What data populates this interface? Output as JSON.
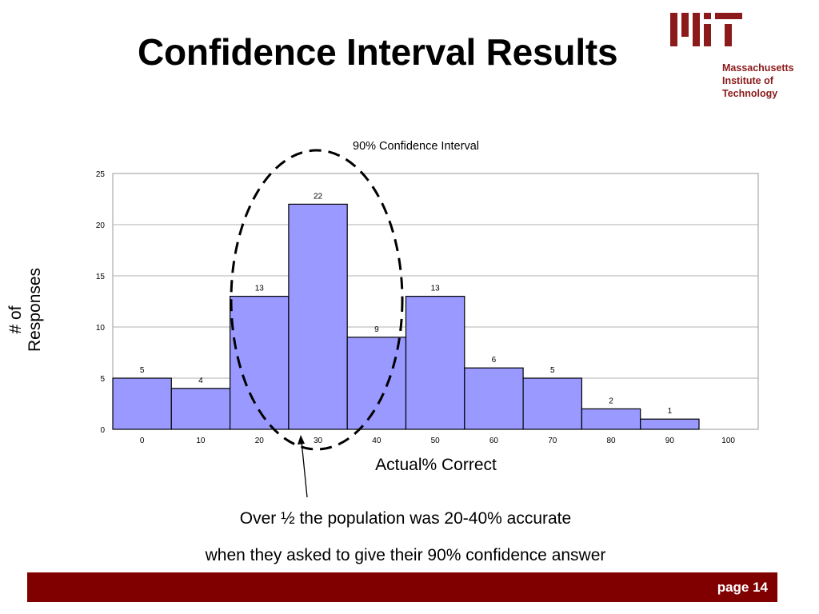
{
  "slide": {
    "title": "Confidence Interval Results",
    "caption_line1": "Over ½ the population was 20-40% accurate",
    "caption_line2": "when they asked to give their 90% confidence answer",
    "page_label": "page 14"
  },
  "logo": {
    "line1": "Massachusetts",
    "line2": "Institute of",
    "line3": "Technology",
    "mark_text": "MIT",
    "color": "#8b1a1a"
  },
  "footer": {
    "color": "#800000"
  },
  "chart_data": {
    "type": "bar",
    "title": "90% Confidence Interval",
    "xlabel": "Actual% Correct",
    "ylabel": "# of Responses",
    "categories": [
      "0",
      "10",
      "20",
      "30",
      "40",
      "50",
      "60",
      "70",
      "80",
      "90",
      "100"
    ],
    "values": [
      5,
      4,
      13,
      22,
      9,
      13,
      6,
      5,
      2,
      1,
      null
    ],
    "data_labels": [
      "5",
      "4",
      "13",
      "22",
      "9",
      "13",
      "6",
      "5",
      "2",
      "1",
      ""
    ],
    "ylim": [
      0,
      25
    ],
    "yticks": [
      "0",
      "5",
      "10",
      "15",
      "20",
      "25"
    ],
    "grid": true,
    "bar_color": "#9999ff",
    "annotation": "dashed ellipse around bins 20-40 with arrow from caption"
  }
}
